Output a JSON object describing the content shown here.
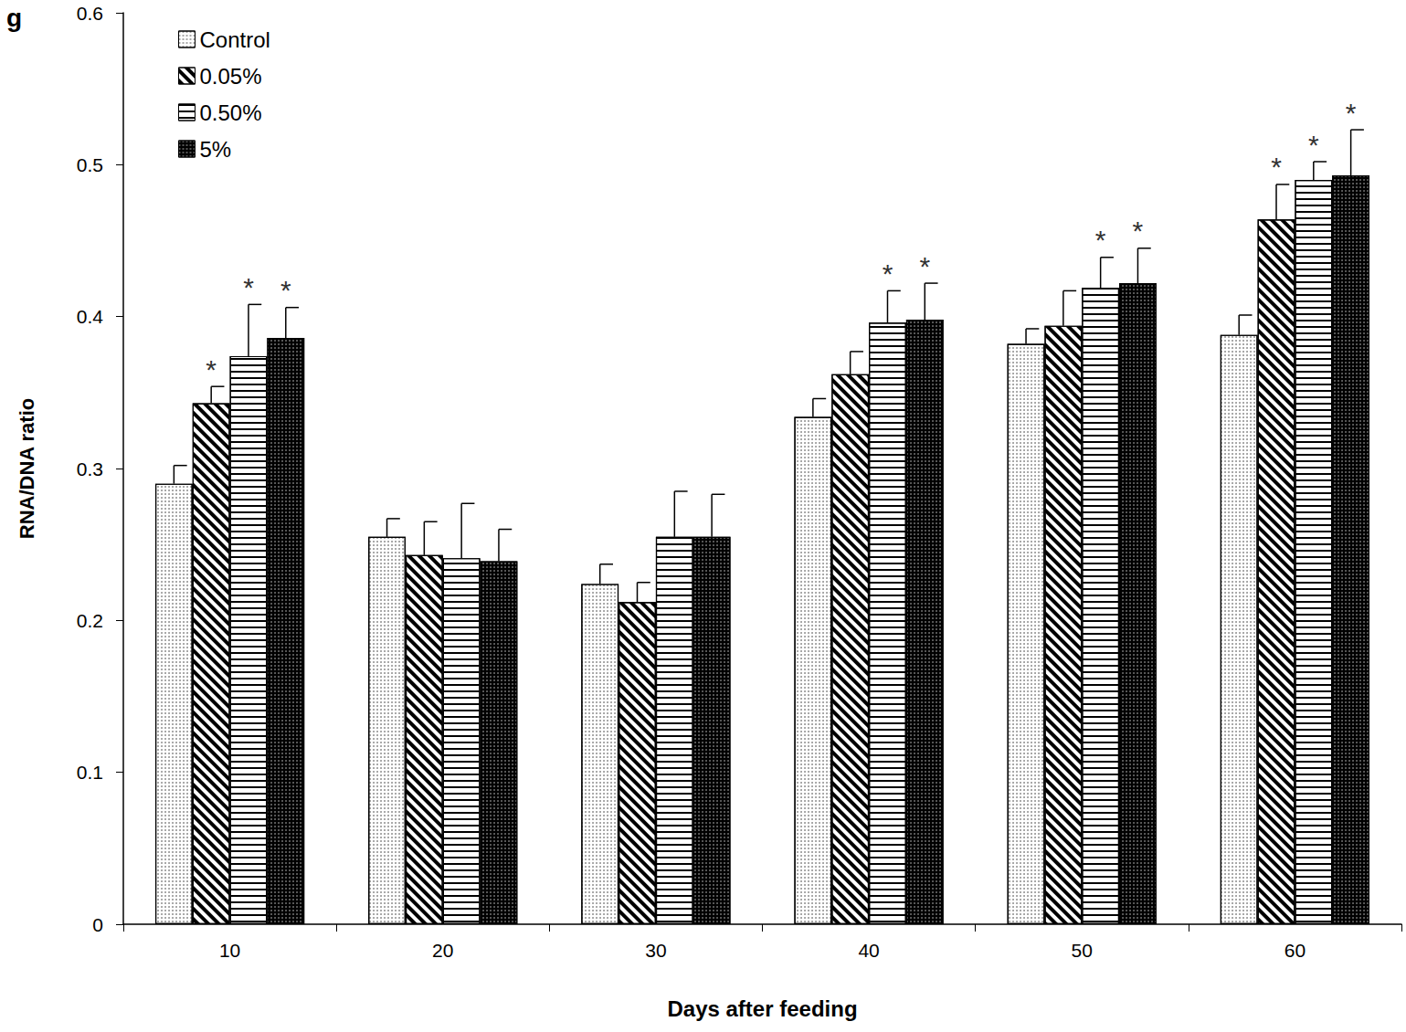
{
  "chart_data": {
    "type": "bar",
    "title": "g",
    "x_label": "Days after feeding",
    "y_label": "RNA/DNA ratio",
    "categories": [
      "10",
      "20",
      "30",
      "40",
      "50",
      "60"
    ],
    "series": [
      {
        "name": "Control",
        "color": "#ffffff",
        "values": [
          0.29,
          0.255,
          0.224,
          0.334,
          0.382,
          0.388
        ],
        "errors": [
          0.012,
          0.012,
          0.013,
          0.012,
          0.01,
          0.013
        ],
        "annotations": [
          null,
          null,
          null,
          null,
          null,
          null
        ]
      },
      {
        "name": "0.05%",
        "color": "#ffffff",
        "values": [
          0.343,
          0.243,
          0.212,
          0.362,
          0.394,
          0.464
        ],
        "errors": [
          0.011,
          0.022,
          0.013,
          0.015,
          0.023,
          0.023
        ],
        "annotations": [
          "*",
          null,
          null,
          null,
          null,
          "*"
        ]
      },
      {
        "name": "0.50%",
        "color": "#ffffff",
        "values": [
          0.374,
          0.241,
          0.255,
          0.396,
          0.419,
          0.49
        ],
        "errors": [
          0.034,
          0.036,
          0.03,
          0.021,
          0.02,
          0.012
        ],
        "annotations": [
          "*",
          null,
          null,
          "*",
          "*",
          "*"
        ]
      },
      {
        "name": "5%",
        "color": "#000000",
        "values": [
          0.386,
          0.239,
          0.255,
          0.398,
          0.422,
          0.493
        ],
        "errors": [
          0.02,
          0.021,
          0.028,
          0.024,
          0.023,
          0.03
        ],
        "annotations": [
          "*",
          null,
          null,
          "*",
          "*",
          "*"
        ]
      }
    ],
    "ylim": [
      0,
      0.6
    ],
    "yticks": [
      0,
      0.1,
      0.2,
      0.3,
      0.4,
      0.5,
      0.6
    ],
    "grid": false,
    "legend": "top-left"
  }
}
